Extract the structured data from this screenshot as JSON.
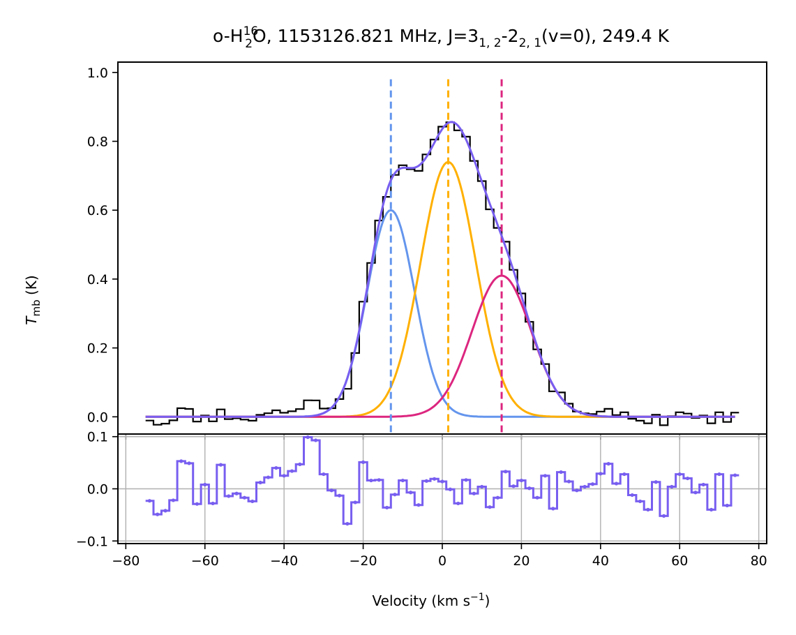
{
  "chart_data": {
    "type": "line",
    "title": {
      "prefix": "o-H",
      "sub1": "2",
      "sup1": "16",
      "mid": "O, 1153126.821 MHz, J=3",
      "sub2": "1, 2",
      "mid2": "-2",
      "sub3": "2, 1",
      "suffix": "(v=0), 249.4 K"
    },
    "colors": {
      "observed": "#000000",
      "blue_component": "#6495ed",
      "orange_component": "#ffb000",
      "magenta_component": "#dc267f",
      "total_fit": "#785ef0",
      "residual": "#785ef0",
      "grid": "#b0b0b0"
    },
    "top_panel": {
      "ylabel_main": "T",
      "ylabel_sub": "mb",
      "ylabel_unit": " (K)",
      "ylim": [
        -0.05,
        1.03
      ],
      "yticks": [
        0.0,
        0.2,
        0.4,
        0.6,
        0.8,
        1.0
      ],
      "ytick_labels": [
        "0.0",
        "0.2",
        "0.4",
        "0.6",
        "0.8",
        "1.0"
      ],
      "components": [
        {
          "name": "blue",
          "amplitude": 0.6,
          "center": -13.0,
          "sigma": 6.0
        },
        {
          "name": "orange",
          "amplitude": 0.74,
          "center": 1.5,
          "sigma": 7.0
        },
        {
          "name": "magenta",
          "amplitude": 0.41,
          "center": 15.0,
          "sigma": 7.5
        }
      ],
      "component_centers": [
        -13.0,
        1.5,
        15.0
      ],
      "fit_range": [
        -75,
        74
      ],
      "residual_scale": 0.47
    },
    "bottom_panel": {
      "ylim": [
        -0.105,
        0.105
      ],
      "yticks": [
        -0.1,
        0.0,
        0.1
      ],
      "ytick_labels": [
        "−0.1",
        "0.0",
        "0.1"
      ],
      "grid": true,
      "residual_x": [
        -74,
        -72,
        -70,
        -68,
        -66,
        -64,
        -62,
        -60,
        -58,
        -56,
        -54,
        -52,
        -50,
        -48,
        -46,
        -44,
        -42,
        -40,
        -38,
        -36,
        -34,
        -32,
        -30,
        -28,
        -26,
        -24,
        -22,
        -20,
        -18,
        -16,
        -14,
        -12,
        -10,
        -8,
        -6,
        -4,
        -2,
        0,
        2,
        4,
        6,
        8,
        10,
        12,
        14,
        16,
        18,
        20,
        22,
        24,
        26,
        28,
        30,
        32,
        34,
        36,
        38,
        40,
        42,
        44,
        46,
        48,
        50,
        52,
        54,
        56,
        58,
        60,
        62,
        64,
        66,
        68,
        70,
        72,
        74
      ],
      "residual_values": [
        -0.023,
        -0.049,
        -0.042,
        -0.022,
        0.053,
        0.049,
        -0.029,
        0.008,
        -0.028,
        0.046,
        -0.014,
        -0.009,
        -0.017,
        -0.024,
        0.012,
        0.022,
        0.04,
        0.025,
        0.034,
        0.047,
        0.099,
        0.093,
        0.028,
        -0.003,
        -0.013,
        -0.067,
        -0.026,
        0.051,
        0.016,
        0.017,
        -0.036,
        -0.011,
        0.016,
        -0.007,
        -0.031,
        0.015,
        0.019,
        0.014,
        -0.001,
        -0.028,
        0.017,
        -0.009,
        0.004,
        -0.035,
        -0.017,
        0.033,
        0.005,
        0.016,
        0.001,
        -0.017,
        0.025,
        -0.038,
        0.032,
        0.014,
        -0.003,
        0.004,
        0.009,
        0.029,
        0.048,
        0.01,
        0.028,
        -0.012,
        -0.024,
        -0.04,
        0.013,
        -0.052,
        0.004,
        0.028,
        0.02,
        -0.007,
        0.008,
        -0.04,
        0.028,
        -0.032,
        0.026
      ]
    },
    "x_axis": {
      "xlabel_main": "Velocity (km s",
      "xlabel_sup": "−1",
      "xlabel_end": ")",
      "xlim": [
        -82,
        82
      ],
      "xticks": [
        -80,
        -60,
        -40,
        -20,
        0,
        20,
        40,
        60,
        80
      ],
      "xtick_labels": [
        "−80",
        "−60",
        "−40",
        "−20",
        "0",
        "20",
        "40",
        "60",
        "80"
      ]
    }
  }
}
